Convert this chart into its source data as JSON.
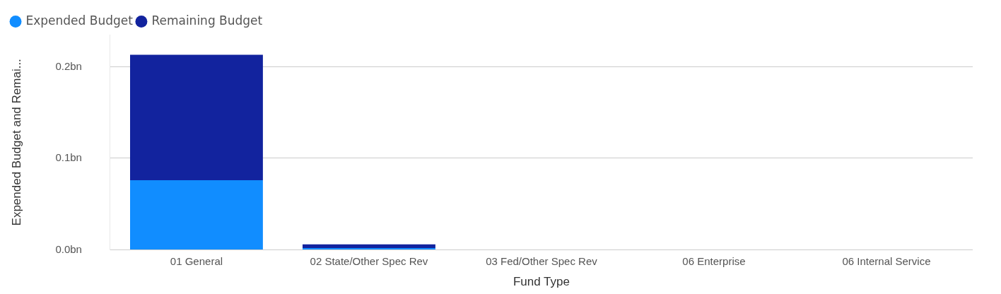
{
  "chart_data": {
    "type": "bar",
    "stacked": true,
    "xlabel": "Fund Type",
    "ylabel": "Expended Budget and Remai...",
    "categories": [
      "01 General",
      "02 State/Other Spec Rev",
      "03 Fed/Other Spec Rev",
      "06 Enterprise",
      "06 Internal Service"
    ],
    "series": [
      {
        "name": "Expended Budget",
        "color": "#118dff",
        "values": [
          0.076,
          0.002,
          0,
          0,
          0
        ]
      },
      {
        "name": "Remaining Budget",
        "color": "#12239e",
        "values": [
          0.137,
          0.004,
          0,
          0,
          0
        ]
      }
    ],
    "ylim": [
      0,
      0.235
    ],
    "yticks": [
      {
        "value": 0,
        "label": "0.0bn"
      },
      {
        "value": 0.1,
        "label": "0.1bn"
      },
      {
        "value": 0.2,
        "label": "0.2bn"
      }
    ],
    "grid": "y",
    "legend": "top left"
  }
}
